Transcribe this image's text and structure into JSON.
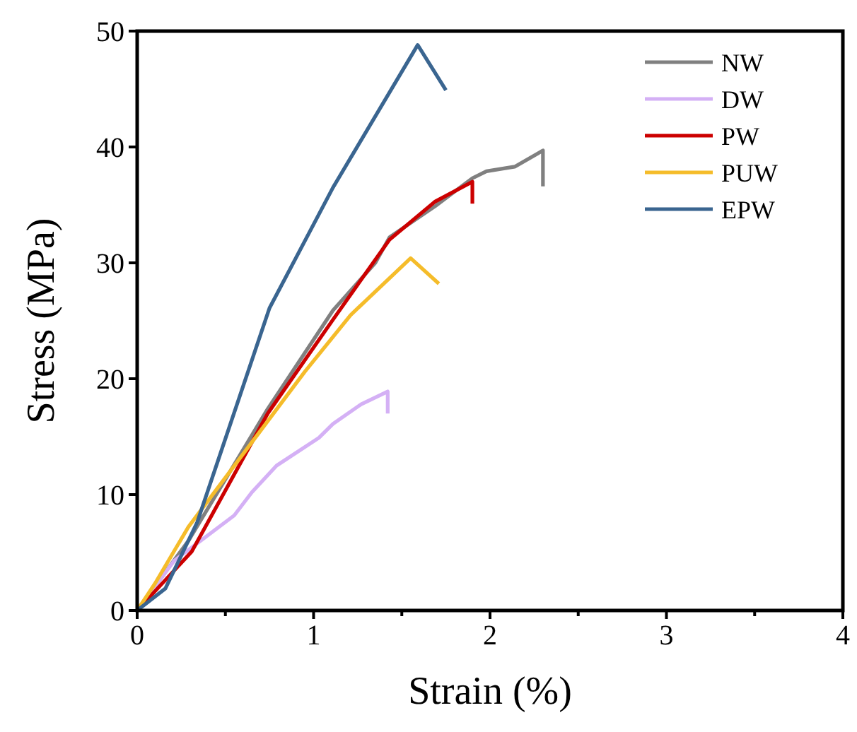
{
  "chart_data": {
    "type": "line",
    "xlabel": "Strain (%)",
    "ylabel": "Stress (MPa)",
    "xlim": [
      0,
      4
    ],
    "ylim": [
      0,
      50
    ],
    "xticks": [
      0,
      {
        "value": 0.5,
        "label": null
      },
      1,
      {
        "value": 1.5,
        "label": null
      },
      2,
      {
        "value": 2.5,
        "label": null
      },
      3,
      {
        "value": 3.5,
        "label": null
      },
      4
    ],
    "yticks": [
      0,
      10,
      20,
      30,
      40,
      50
    ],
    "grid": false,
    "legend": "top right",
    "marker": "none",
    "line_style": "solid",
    "series": [
      {
        "name": "NW",
        "color": "#808080",
        "x": [
          0,
          0.29,
          0.74,
          1.11,
          1.35,
          1.43,
          1.69,
          1.9,
          1.98,
          2.14,
          2.3,
          2.3
        ],
        "values": [
          0,
          6,
          17.4,
          25.9,
          30,
          32.2,
          34.9,
          37.3,
          37.9,
          38.3,
          39.7,
          36.6
        ]
      },
      {
        "name": "DW",
        "color": "#d4b0f5",
        "x": [
          0,
          0.21,
          0.55,
          0.65,
          0.79,
          1.03,
          1.11,
          1.27,
          1.42,
          1.42
        ],
        "values": [
          0,
          4.3,
          8.2,
          10.2,
          12.5,
          14.9,
          16.1,
          17.8,
          18.9,
          17
        ]
      },
      {
        "name": "PW",
        "color": "#cc0000",
        "x": [
          0,
          0.31,
          0.74,
          1.11,
          1.43,
          1.69,
          1.9,
          1.9
        ],
        "values": [
          0,
          5.1,
          17,
          25.1,
          32,
          35.3,
          37,
          35.1
        ]
      },
      {
        "name": "PUW",
        "color": "#f5bc2a",
        "x": [
          0,
          0.1,
          0.29,
          0.95,
          1.21,
          1.55,
          1.71
        ],
        "values": [
          0,
          2.3,
          7.2,
          20.6,
          25.5,
          30.4,
          28.2
        ]
      },
      {
        "name": "EPW",
        "color": "#3a6590",
        "x": [
          0,
          0.16,
          0.34,
          0.75,
          1.11,
          1.27,
          1.59,
          1.75
        ],
        "values": [
          0,
          1.9,
          7.6,
          26.1,
          36.5,
          40.6,
          48.8,
          44.9
        ]
      }
    ]
  }
}
